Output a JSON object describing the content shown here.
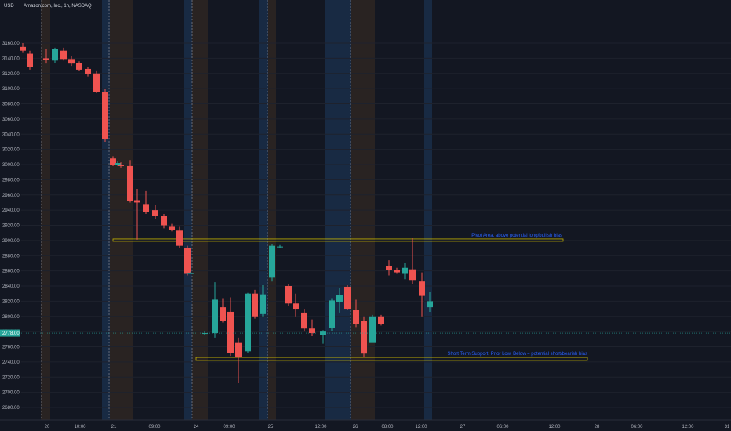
{
  "header": {
    "currency": "USD",
    "symbol_title": "Amazon.com, Inc., 1h, NASDAQ"
  },
  "colors": {
    "background": "#131722",
    "up": "#26a69a",
    "down": "#ef5350",
    "zone_blue": "#1e3a5f",
    "zone_orange": "#3d2e22",
    "box_stroke": "#c8b400",
    "annotation": "#2962ff",
    "grid": "#1e222d"
  },
  "chart_data": {
    "type": "candlestick",
    "title": "Amazon.com, Inc., 1h, NASDAQ",
    "ylim": [
      2670,
      3175
    ],
    "y_ticks": [
      2680,
      2700,
      2720,
      2740,
      2760,
      2780,
      2800,
      2820,
      2840,
      2860,
      2880,
      2900,
      2920,
      2940,
      2960,
      2980,
      3000,
      3020,
      3040,
      3060,
      3080,
      3100,
      3120,
      3140,
      3160
    ],
    "y_tick_labels": [
      "2680.00",
      "2700.00",
      "2720.00",
      "2740.00",
      "2760.00",
      "2780.00",
      "2800.00",
      "2820.00",
      "2840.00",
      "2860.00",
      "2880.00",
      "2900.00",
      "2920.00",
      "2940.00",
      "2960.00",
      "2980.00",
      "3000.00",
      "3020.00",
      "3040.00",
      "3060.00",
      "3080.00",
      "3100.00",
      "3120.00",
      "3140.00",
      "3160.00"
    ],
    "x_tick_labels": [
      "20",
      "10:00",
      "21",
      "09:00",
      "24",
      "09:00",
      "25",
      "12:00",
      "26",
      "08:00",
      "12:00",
      "27",
      "06:00",
      "12:00",
      "28",
      "06:00",
      "12:00",
      "31"
    ],
    "last_price_label": "2778.00",
    "last_price": 2778,
    "candles": [
      {
        "o": 3155,
        "h": 3160,
        "l": 3148,
        "c": 3150
      },
      {
        "o": 3146,
        "h": 3150,
        "l": 3125,
        "c": 3128
      },
      {
        "o": 3140,
        "h": 3152,
        "l": 3133,
        "c": 3138
      },
      {
        "o": 3137,
        "h": 3154,
        "l": 3134,
        "c": 3152
      },
      {
        "o": 3150,
        "h": 3154,
        "l": 3137,
        "c": 3139
      },
      {
        "o": 3139,
        "h": 3143,
        "l": 3130,
        "c": 3133
      },
      {
        "o": 3134,
        "h": 3136,
        "l": 3123,
        "c": 3125
      },
      {
        "o": 3126,
        "h": 3129,
        "l": 3116,
        "c": 3119
      },
      {
        "o": 3120,
        "h": 3124,
        "l": 3094,
        "c": 3096
      },
      {
        "o": 3096,
        "h": 3100,
        "l": 3030,
        "c": 3033
      },
      {
        "o": 3008,
        "h": 3011,
        "l": 2998,
        "c": 3000
      },
      {
        "o": 3000,
        "h": 3004,
        "l": 2998,
        "c": 3002
      },
      {
        "o": 3000,
        "h": 3003,
        "l": 2996,
        "c": 2998
      },
      {
        "o": 2998,
        "h": 3006,
        "l": 2950,
        "c": 2952
      },
      {
        "o": 2953,
        "h": 2968,
        "l": 2901,
        "c": 2950
      },
      {
        "o": 2948,
        "h": 2965,
        "l": 2935,
        "c": 2938
      },
      {
        "o": 2940,
        "h": 2947,
        "l": 2928,
        "c": 2932
      },
      {
        "o": 2932,
        "h": 2935,
        "l": 2916,
        "c": 2920
      },
      {
        "o": 2918,
        "h": 2922,
        "l": 2912,
        "c": 2914
      },
      {
        "o": 2913,
        "h": 2918,
        "l": 2890,
        "c": 2893
      },
      {
        "o": 2890,
        "h": 2893,
        "l": 2854,
        "c": 2856
      },
      {
        "o": 2857,
        "h": 2859,
        "l": 2856,
        "c": 2857
      },
      {
        "o": 2778,
        "h": 2780,
        "l": 2776,
        "c": 2778
      },
      {
        "o": 2778,
        "h": 2845,
        "l": 2772,
        "c": 2822
      },
      {
        "o": 2812,
        "h": 2824,
        "l": 2792,
        "c": 2794
      },
      {
        "o": 2806,
        "h": 2825,
        "l": 2748,
        "c": 2752
      },
      {
        "o": 2765,
        "h": 2772,
        "l": 2712,
        "c": 2746
      },
      {
        "o": 2754,
        "h": 2831,
        "l": 2752,
        "c": 2830
      },
      {
        "o": 2830,
        "h": 2835,
        "l": 2797,
        "c": 2800
      },
      {
        "o": 2803,
        "h": 2841,
        "l": 2800,
        "c": 2829
      },
      {
        "o": 2851,
        "h": 2895,
        "l": 2846,
        "c": 2893
      },
      {
        "o": 2892,
        "h": 2894,
        "l": 2890,
        "c": 2892
      },
      {
        "o": 2840,
        "h": 2843,
        "l": 2814,
        "c": 2817
      },
      {
        "o": 2817,
        "h": 2830,
        "l": 2800,
        "c": 2810
      },
      {
        "o": 2805,
        "h": 2810,
        "l": 2780,
        "c": 2784
      },
      {
        "o": 2784,
        "h": 2796,
        "l": 2774,
        "c": 2778
      },
      {
        "o": 2776,
        "h": 2782,
        "l": 2764,
        "c": 2780
      },
      {
        "o": 2785,
        "h": 2824,
        "l": 2781,
        "c": 2821
      },
      {
        "o": 2819,
        "h": 2837,
        "l": 2805,
        "c": 2828
      },
      {
        "o": 2839,
        "h": 2841,
        "l": 2808,
        "c": 2810
      },
      {
        "o": 2808,
        "h": 2822,
        "l": 2786,
        "c": 2790
      },
      {
        "o": 2794,
        "h": 2800,
        "l": 2746,
        "c": 2751
      },
      {
        "o": 2765,
        "h": 2802,
        "l": 2768,
        "c": 2800
      },
      {
        "o": 2800,
        "h": 2802,
        "l": 2788,
        "c": 2790
      },
      {
        "o": 2866,
        "h": 2874,
        "l": 2854,
        "c": 2861
      },
      {
        "o": 2861,
        "h": 2864,
        "l": 2856,
        "c": 2858
      },
      {
        "o": 2856,
        "h": 2870,
        "l": 2849,
        "c": 2864
      },
      {
        "o": 2862,
        "h": 2903,
        "l": 2843,
        "c": 2848
      },
      {
        "o": 2846,
        "h": 2858,
        "l": 2800,
        "c": 2827
      },
      {
        "o": 2812,
        "h": 2832,
        "l": 2806,
        "c": 2820
      },
      {
        "o": 2819,
        "h": 2858,
        "l": 2818,
        "c": 2856
      },
      {
        "o": 2858,
        "h": 2866,
        "l": 2820,
        "c": 2839
      },
      {
        "o": 2839,
        "h": 2876,
        "l": 2796,
        "c": 2803
      },
      {
        "o": 2799,
        "h": 2806,
        "l": 2749,
        "c": 2785
      },
      {
        "o": 2773,
        "h": 2782,
        "l": 2771,
        "c": 2780
      }
    ],
    "annotations": [
      {
        "label": "Pivot Area, above potential long/bullish bias",
        "y1": 2902,
        "y2": 2899
      },
      {
        "label": "Short Term Support, Prior Low, Below = potential short/bearish bias",
        "y1": 2746,
        "y2": 2742
      }
    ]
  }
}
